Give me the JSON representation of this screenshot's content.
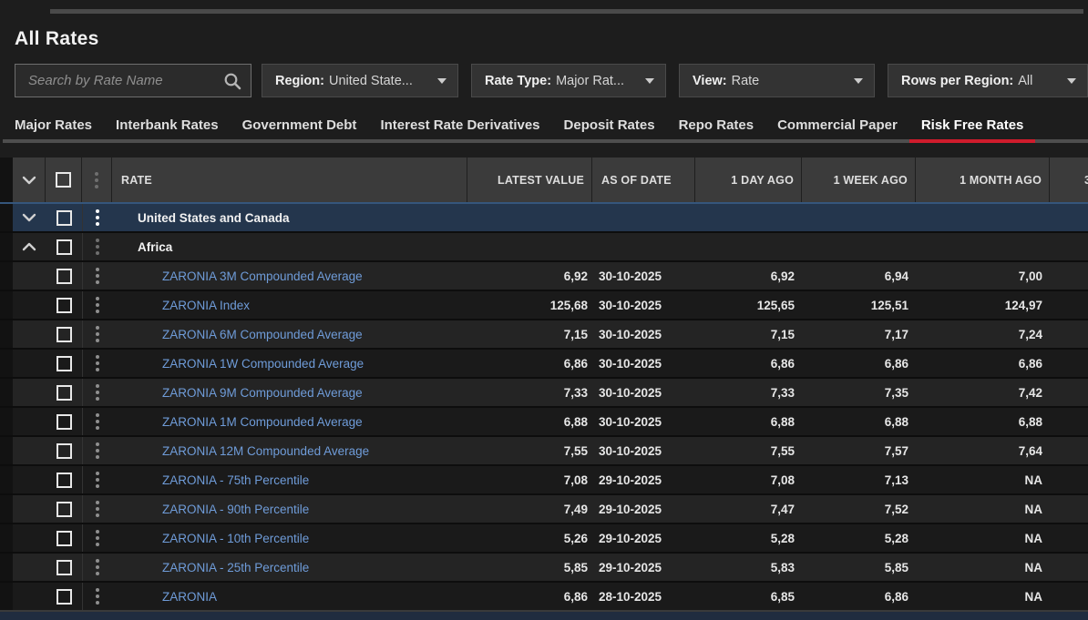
{
  "page": {
    "title": "All Rates"
  },
  "search": {
    "placeholder": "Search by Rate Name"
  },
  "filters": [
    {
      "label": "Region:",
      "value": "United State..."
    },
    {
      "label": "Rate Type:",
      "value": "Major Rat..."
    },
    {
      "label": "View:",
      "value": "Rate"
    },
    {
      "label": "Rows per Region:",
      "value": "All"
    }
  ],
  "tabs": [
    {
      "label": "Major Rates",
      "active": false
    },
    {
      "label": "Interbank Rates",
      "active": false
    },
    {
      "label": "Government Debt",
      "active": false
    },
    {
      "label": "Interest Rate Derivatives",
      "active": false
    },
    {
      "label": "Deposit Rates",
      "active": false
    },
    {
      "label": "Repo Rates",
      "active": false
    },
    {
      "label": "Commercial Paper",
      "active": false
    },
    {
      "label": "Risk Free Rates",
      "active": true
    }
  ],
  "colors": {
    "accent_red": "#cf1c2c",
    "selected_row_blue": "#24364d",
    "link_blue": "#6f9cd9"
  },
  "table": {
    "columns": {
      "rate": "RATE",
      "latest_value": "LATEST VALUE",
      "as_of_date": "AS OF DATE",
      "day_ago": "1 DAY AGO",
      "week_ago": "1 WEEK AGO",
      "month_ago": "1 MONTH AGO",
      "clipped_next": "3"
    },
    "groups": [
      {
        "name": "United States and Canada",
        "expanded": false,
        "selected": true,
        "rows": []
      },
      {
        "name": "Africa",
        "expanded": true,
        "selected": false,
        "rows": [
          {
            "name": "ZARONIA 3M Compounded Average",
            "latest": "6,92",
            "as_of": "30-10-2025",
            "d1": "6,92",
            "w1": "6,94",
            "m1": "7,00"
          },
          {
            "name": "ZARONIA Index",
            "latest": "125,68",
            "as_of": "30-10-2025",
            "d1": "125,65",
            "w1": "125,51",
            "m1": "124,97"
          },
          {
            "name": "ZARONIA 6M Compounded Average",
            "latest": "7,15",
            "as_of": "30-10-2025",
            "d1": "7,15",
            "w1": "7,17",
            "m1": "7,24"
          },
          {
            "name": "ZARONIA 1W Compounded Average",
            "latest": "6,86",
            "as_of": "30-10-2025",
            "d1": "6,86",
            "w1": "6,86",
            "m1": "6,86"
          },
          {
            "name": "ZARONIA 9M Compounded Average",
            "latest": "7,33",
            "as_of": "30-10-2025",
            "d1": "7,33",
            "w1": "7,35",
            "m1": "7,42"
          },
          {
            "name": "ZARONIA 1M Compounded Average",
            "latest": "6,88",
            "as_of": "30-10-2025",
            "d1": "6,88",
            "w1": "6,88",
            "m1": "6,88"
          },
          {
            "name": "ZARONIA 12M Compounded Average",
            "latest": "7,55",
            "as_of": "30-10-2025",
            "d1": "7,55",
            "w1": "7,57",
            "m1": "7,64"
          },
          {
            "name": "ZARONIA - 75th Percentile",
            "latest": "7,08",
            "as_of": "29-10-2025",
            "d1": "7,08",
            "w1": "7,13",
            "m1": "NA"
          },
          {
            "name": "ZARONIA - 90th Percentile",
            "latest": "7,49",
            "as_of": "29-10-2025",
            "d1": "7,47",
            "w1": "7,52",
            "m1": "NA"
          },
          {
            "name": "ZARONIA - 10th Percentile",
            "latest": "5,26",
            "as_of": "29-10-2025",
            "d1": "5,28",
            "w1": "5,28",
            "m1": "NA"
          },
          {
            "name": "ZARONIA - 25th Percentile",
            "latest": "5,85",
            "as_of": "29-10-2025",
            "d1": "5,83",
            "w1": "5,85",
            "m1": "NA"
          },
          {
            "name": "ZARONIA",
            "latest": "6,86",
            "as_of": "28-10-2025",
            "d1": "6,85",
            "w1": "6,86",
            "m1": "NA"
          }
        ]
      }
    ]
  }
}
